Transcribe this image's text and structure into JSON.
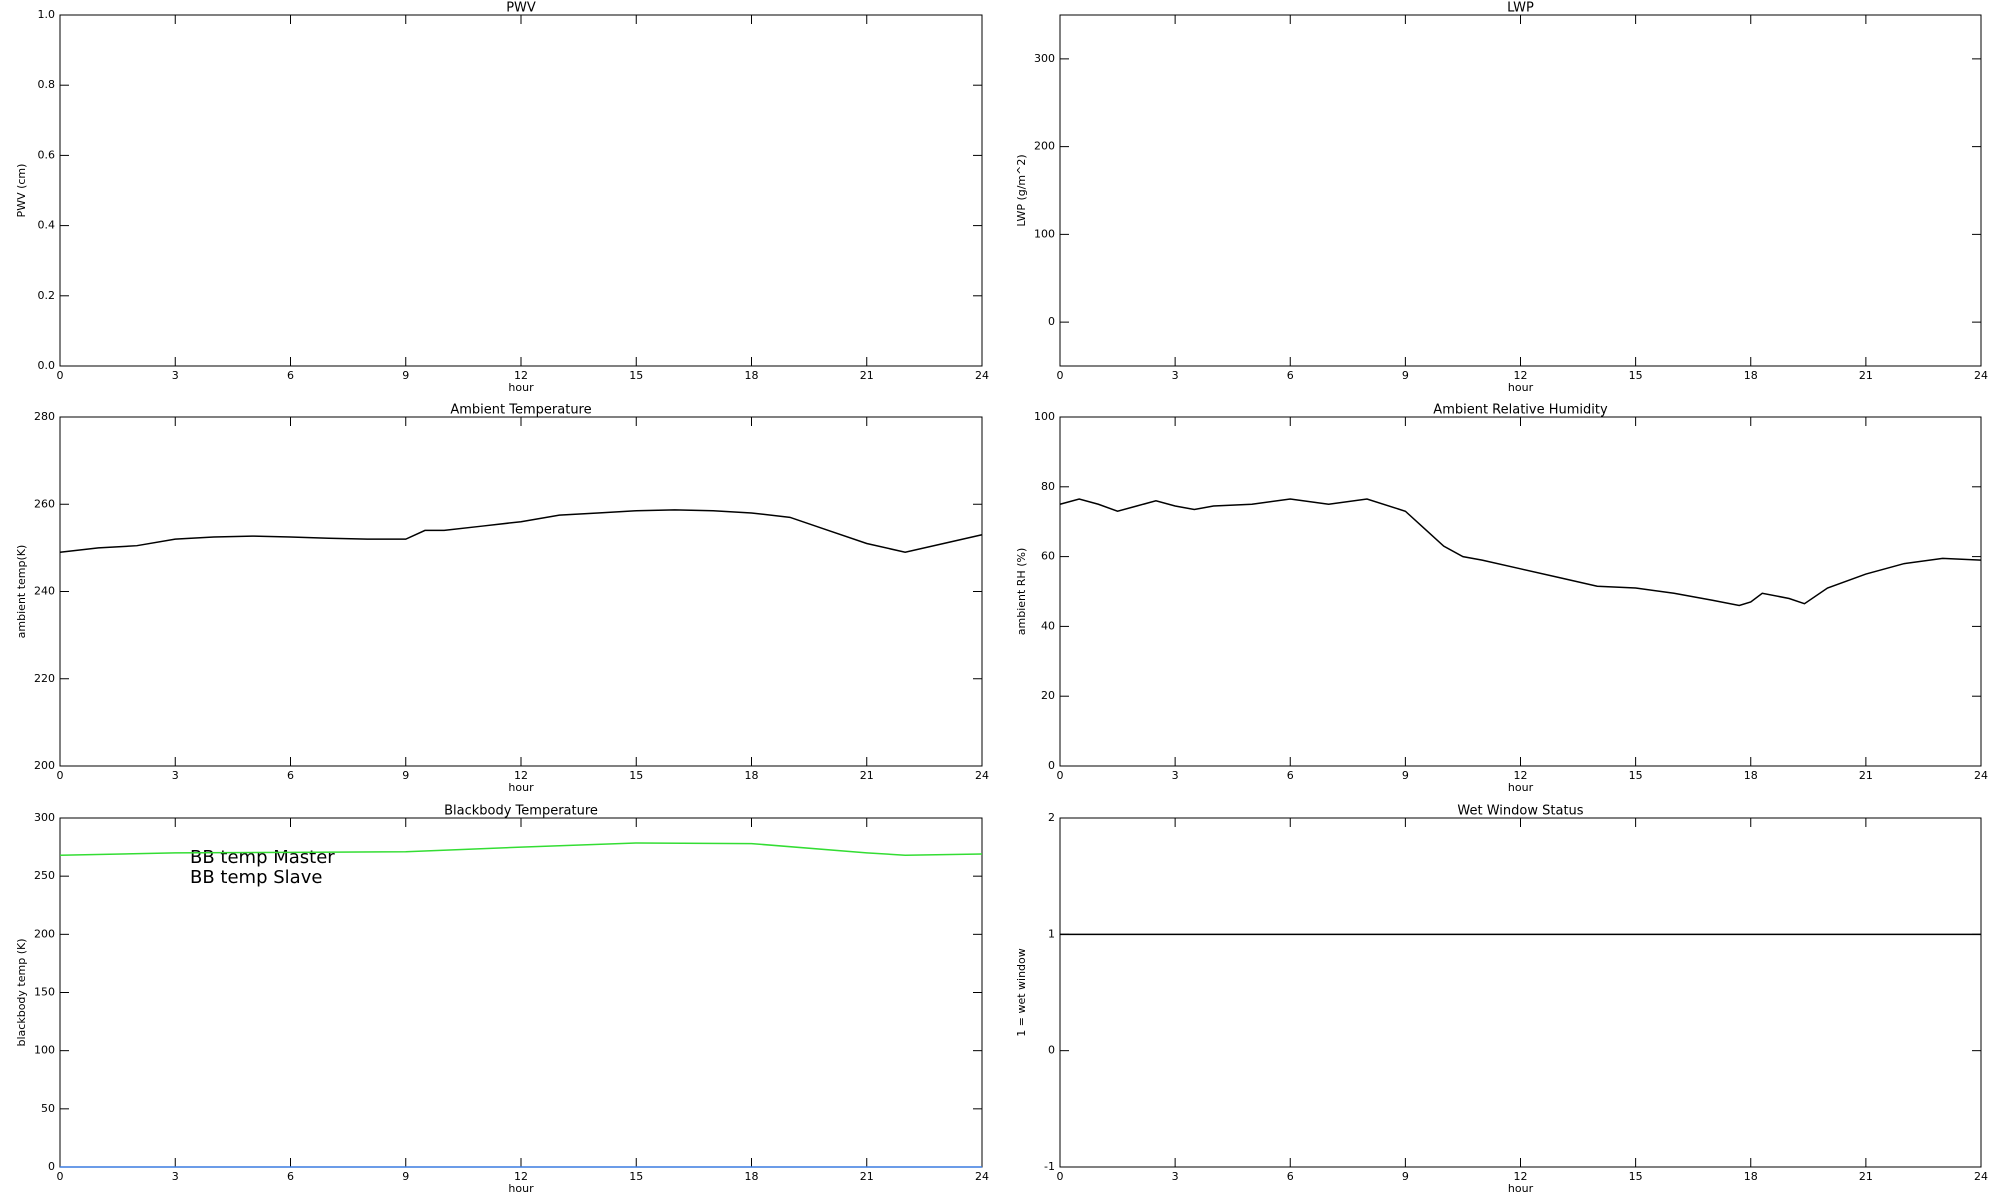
{
  "chart_data": [
    {
      "type": "line",
      "title": "PWV",
      "xlabel": "hour",
      "ylabel": "PWV (cm)",
      "xlim": [
        0,
        24
      ],
      "xticks": [
        0,
        3,
        6,
        9,
        12,
        15,
        18,
        21,
        24
      ],
      "ylim": [
        0,
        1
      ],
      "yticks": [
        {
          "value": 0,
          "label": "0.0"
        },
        0.2,
        0.4,
        0.6,
        0.8,
        {
          "value": 1,
          "label": "1.0"
        }
      ]
    },
    {
      "type": "line",
      "title": "LWP",
      "xlabel": "hour",
      "ylabel": "LWP (g/m^2)",
      "xlim": [
        0,
        24
      ],
      "xticks": [
        0,
        3,
        6,
        9,
        12,
        15,
        18,
        21,
        24
      ],
      "ylim": [
        -50,
        350
      ],
      "yticks": [
        0,
        100,
        200,
        300
      ]
    },
    {
      "type": "line",
      "title": "Ambient Temperature",
      "xlabel": "hour",
      "ylabel": "ambient temp(K)",
      "xlim": [
        0,
        24
      ],
      "xticks": [
        0,
        3,
        6,
        9,
        12,
        15,
        18,
        21,
        24
      ],
      "ylim": [
        200,
        280
      ],
      "yticks": [
        200,
        220,
        240,
        260,
        280
      ],
      "x": [
        0,
        1,
        2,
        3,
        4,
        5,
        6,
        7,
        8,
        9,
        9.5,
        10,
        11,
        12,
        13,
        14,
        15,
        16,
        17,
        18,
        19,
        20,
        21,
        22,
        23,
        24
      ],
      "values": [
        249,
        250,
        250.5,
        252,
        252.5,
        252.7,
        252.5,
        252.2,
        252,
        252,
        254,
        254,
        255,
        256,
        257.5,
        258,
        258.5,
        258.7,
        258.5,
        258,
        257,
        254,
        251,
        249,
        251,
        253
      ],
      "color": "#000000"
    },
    {
      "type": "line",
      "title": "Ambient Relative Humidity",
      "xlabel": "hour",
      "ylabel": "ambient RH (%)",
      "xlim": [
        0,
        24
      ],
      "xticks": [
        0,
        3,
        6,
        9,
        12,
        15,
        18,
        21,
        24
      ],
      "ylim": [
        0,
        100
      ],
      "yticks": [
        0,
        20,
        40,
        60,
        80,
        100
      ],
      "x": [
        0,
        0.5,
        1,
        1.5,
        2,
        2.5,
        3,
        3.5,
        4,
        5,
        6,
        7,
        8,
        9,
        9.5,
        10,
        10.5,
        11,
        12,
        13,
        14,
        15,
        16,
        17,
        17.7,
        18,
        18.3,
        19,
        19.4,
        20,
        21,
        22,
        23,
        24
      ],
      "values": [
        75,
        76.5,
        75,
        73,
        74.5,
        76,
        74.5,
        73.5,
        74.5,
        75,
        76.5,
        75,
        76.5,
        73,
        68,
        63,
        60,
        59,
        56.5,
        54,
        51.5,
        51,
        49.5,
        47.5,
        46,
        47,
        49.5,
        48,
        46.5,
        51,
        55,
        58,
        59.5,
        59
      ],
      "color": "#000000"
    },
    {
      "type": "line",
      "title": "Blackbody Temperature",
      "xlabel": "hour",
      "ylabel": "blackbody temp (K)",
      "xlim": [
        0,
        24
      ],
      "xticks": [
        0,
        3,
        6,
        9,
        12,
        15,
        18,
        21,
        24
      ],
      "ylim": [
        0,
        300
      ],
      "yticks": [
        0,
        50,
        100,
        150,
        200,
        250,
        300
      ],
      "x": [
        0,
        3,
        6,
        9,
        12,
        15,
        18,
        21,
        22,
        24
      ],
      "series": [
        {
          "name": "BB temp Master",
          "color": "#3a7be0",
          "values": [
            0,
            0,
            0,
            0,
            0,
            0,
            0,
            0,
            0,
            0
          ]
        },
        {
          "name": "BB temp Slave",
          "color": "#33dd33",
          "values": [
            268,
            270,
            270.5,
            271,
            275,
            278.5,
            278,
            270,
            268,
            269
          ]
        }
      ]
    },
    {
      "type": "line",
      "title": "Wet Window Status",
      "xlabel": "hour",
      "ylabel": "1 = wet window",
      "xlim": [
        0,
        24
      ],
      "xticks": [
        0,
        3,
        6,
        9,
        12,
        15,
        18,
        21,
        24
      ],
      "ylim": [
        -1,
        2
      ],
      "yticks": [
        -1,
        0,
        1,
        2
      ],
      "x": [
        0,
        24
      ],
      "values": [
        1,
        1
      ],
      "color": "#000000"
    }
  ]
}
